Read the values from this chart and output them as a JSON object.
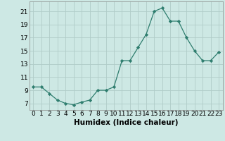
{
  "x": [
    0,
    1,
    2,
    3,
    4,
    5,
    6,
    7,
    8,
    9,
    10,
    11,
    12,
    13,
    14,
    15,
    16,
    17,
    18,
    19,
    20,
    21,
    22,
    23
  ],
  "y": [
    9.5,
    9.5,
    8.5,
    7.5,
    7.0,
    6.8,
    7.2,
    7.5,
    9.0,
    9.0,
    9.5,
    13.5,
    13.5,
    15.5,
    17.5,
    21.0,
    21.5,
    19.5,
    19.5,
    17.0,
    15.0,
    13.5,
    13.5,
    14.8
  ],
  "line_color": "#2e7d6e",
  "marker_color": "#2e7d6e",
  "bg_color": "#cde8e4",
  "grid_color": "#b0ccc8",
  "xlabel": "Humidex (Indice chaleur)",
  "xlim": [
    -0.5,
    23.5
  ],
  "ylim": [
    6,
    22.5
  ],
  "xticks": [
    0,
    1,
    2,
    3,
    4,
    5,
    6,
    7,
    8,
    9,
    10,
    11,
    12,
    13,
    14,
    15,
    16,
    17,
    18,
    19,
    20,
    21,
    22,
    23
  ],
  "yticks": [
    7,
    9,
    11,
    13,
    15,
    17,
    19,
    21
  ],
  "tick_fontsize": 6.5,
  "xlabel_fontsize": 7.5
}
